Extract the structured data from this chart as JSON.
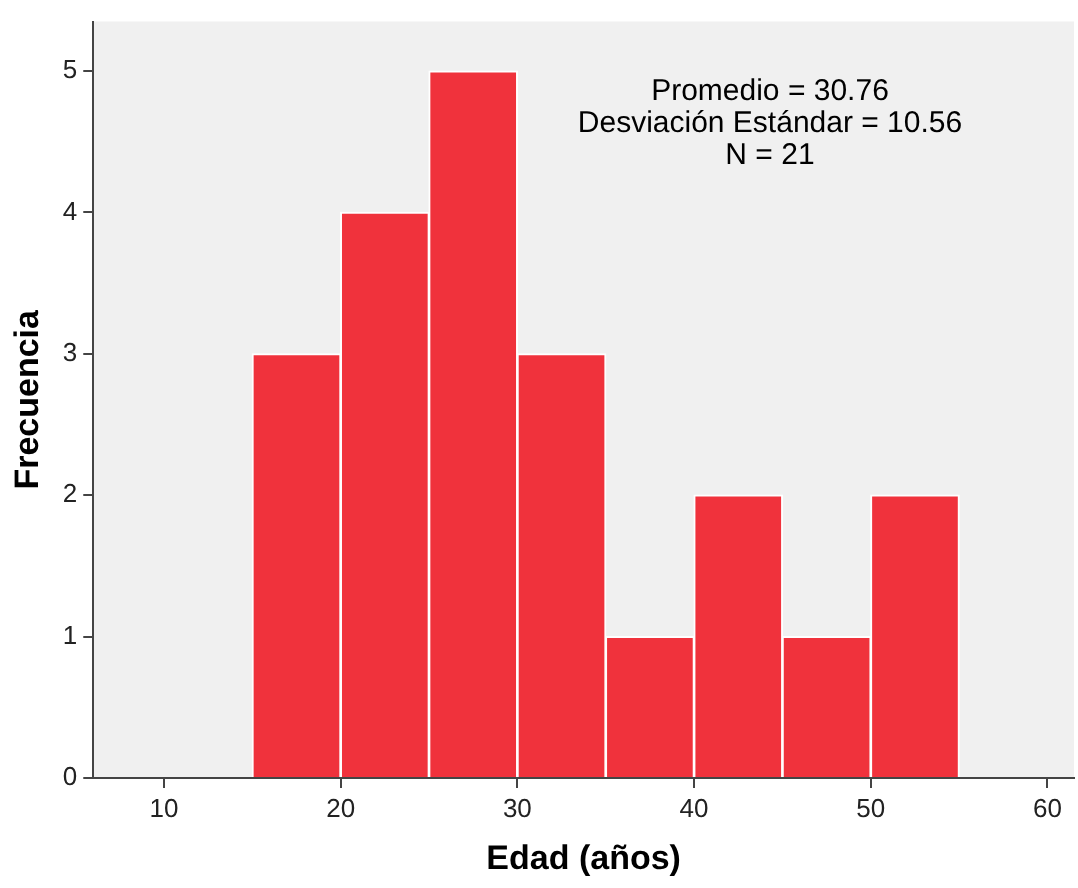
{
  "chart_data": {
    "type": "histogram",
    "xlabel": "Edad (años)",
    "ylabel": "Frecuencia",
    "bins": [
      15,
      20,
      25,
      30,
      35,
      40,
      45,
      50,
      55
    ],
    "values": [
      3,
      4,
      5,
      3,
      1,
      2,
      1,
      2
    ],
    "color": "#f0323c",
    "xlim": [
      6,
      61.5
    ],
    "xticks": [
      10,
      20,
      30,
      40,
      50,
      60
    ],
    "ylim": [
      0,
      5.35
    ],
    "yticks": [
      0,
      1,
      2,
      3,
      4,
      5
    ],
    "annotations": [
      "Promedio = 30.76",
      "Desviación Estándar = 10.56",
      "N = 21"
    ]
  }
}
